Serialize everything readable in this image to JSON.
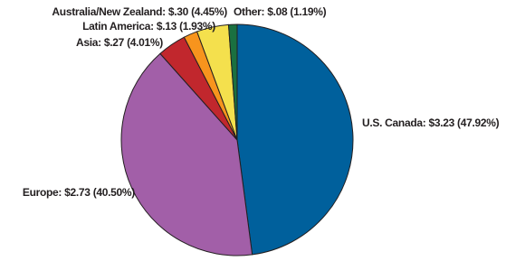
{
  "chart_data": {
    "type": "pie",
    "categories": [
      "U.S. Canada: $3.23 (47.92%)",
      "Europe: $2.73 (40.50%)",
      "Asia: $.27 (4.01%)",
      "Latin America: $.13 (1.93%)",
      "Australia/New Zealand: $.30 (4.45%)",
      "Other: $.08 (1.19%)"
    ],
    "values": [
      3.23,
      2.73,
      0.27,
      0.13,
      0.3,
      0.08
    ],
    "colors": [
      "#00609c",
      "#a25fa8",
      "#c1272d",
      "#f7941d",
      "#f4e04d",
      "#1a7040"
    ]
  }
}
